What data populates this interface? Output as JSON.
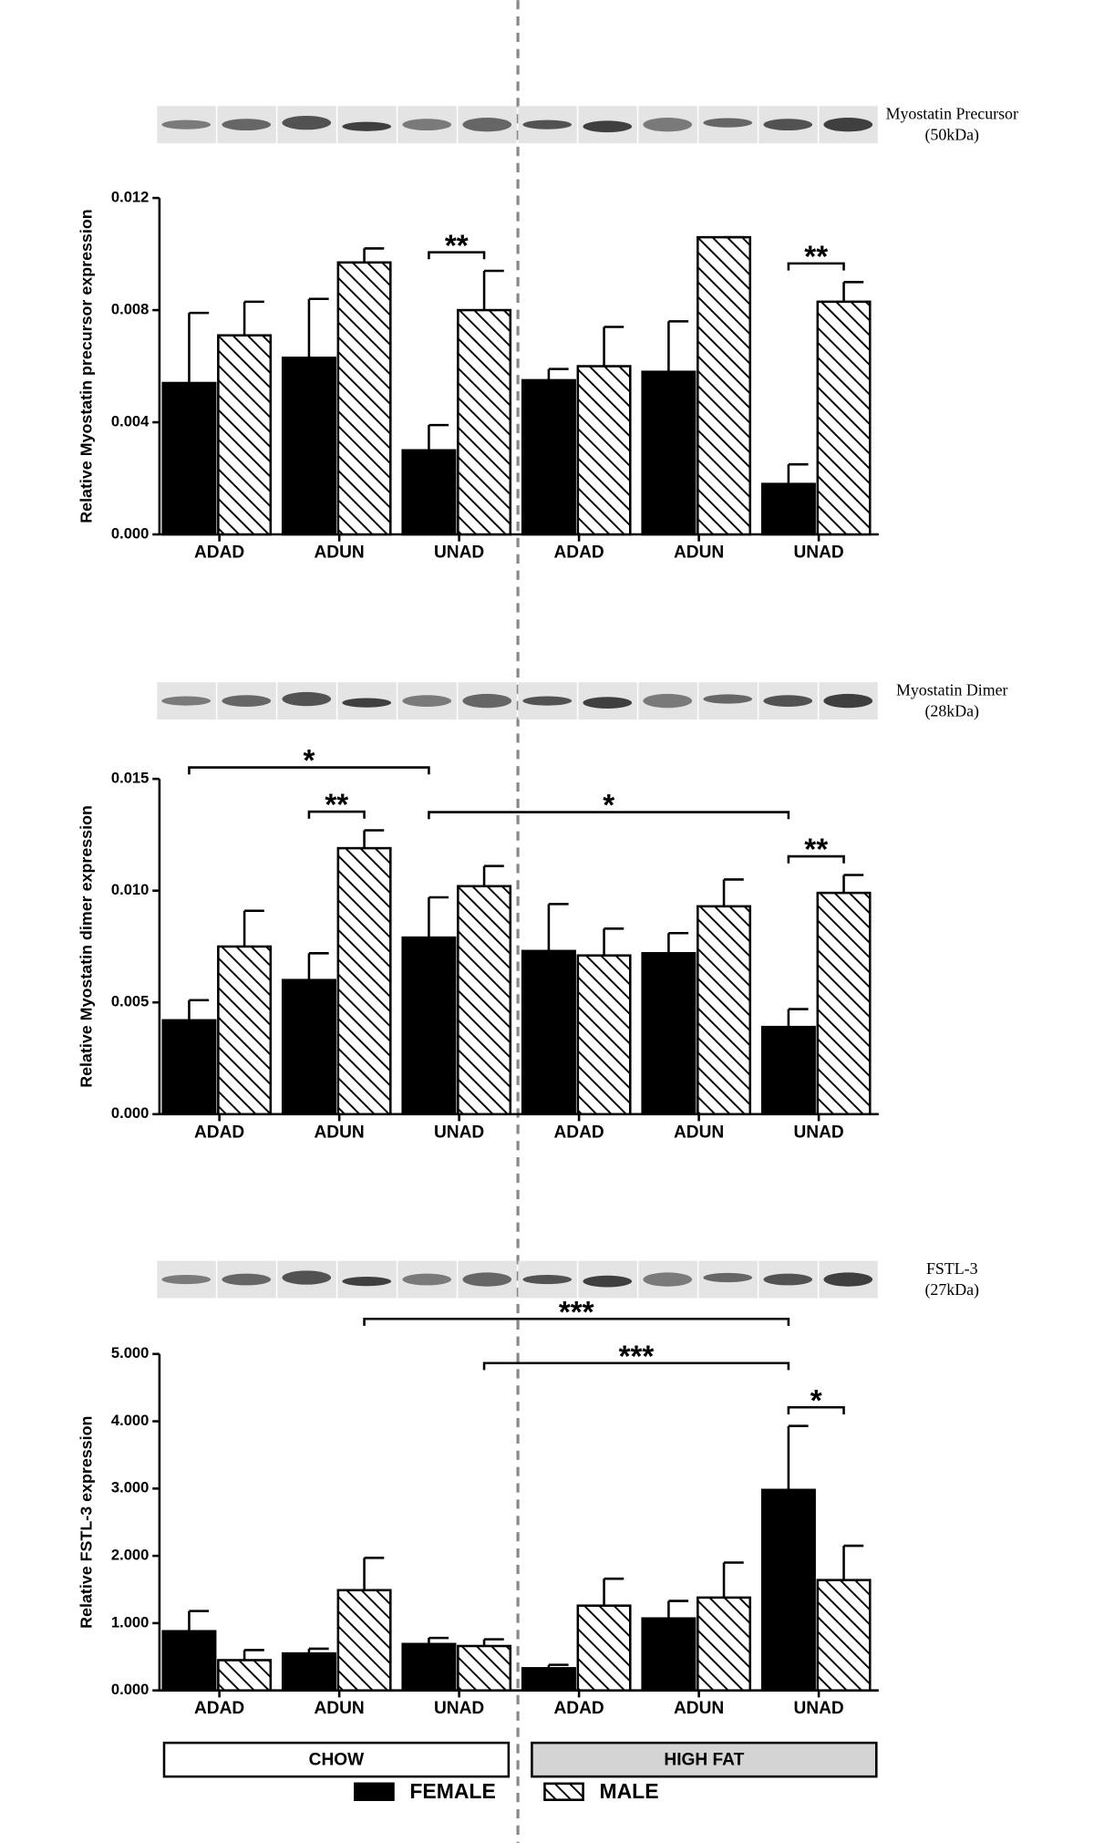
{
  "chart_data": [
    {
      "type": "bar",
      "blot": [
        "Myostatin Precursor",
        "(50kDa)"
      ],
      "y_label": "Relative Myostatin precursor expression",
      "categories": [
        "ADAD",
        "ADUN",
        "UNAD",
        "ADAD",
        "ADUN",
        "UNAD"
      ],
      "series": [
        {
          "color": "#000000",
          "hatch": false,
          "values": [
            0.0054,
            0.0063,
            0.003,
            0.0055,
            0.0058,
            0.0018
          ],
          "errors": [
            0.0025,
            0.0021,
            0.0009,
            0.0004,
            0.0018,
            0.0007
          ]
        },
        {
          "color": "#000000",
          "hatch": true,
          "values": [
            0.0071,
            0.0097,
            0.008,
            0.006,
            0.0106,
            0.0083
          ],
          "errors": [
            0.0012,
            0.0005,
            0.0014,
            0.0014,
            0,
            0.0007
          ]
        }
      ],
      "ylim": [
        0,
        0.012
      ],
      "yticks": [
        {
          "value": 0,
          "label": "0.000"
        },
        0.004,
        0.008,
        0.012
      ],
      "annotations": [
        {
          "text": "**",
          "from": [
            2,
            0
          ],
          "to": [
            2,
            1
          ]
        },
        {
          "text": "**",
          "from": [
            5,
            0
          ],
          "to": [
            5,
            1
          ]
        }
      ]
    },
    {
      "type": "bar",
      "blot": [
        "Myostatin Dimer",
        "(28kDa)"
      ],
      "y_label": "Relative Myostatin dimer expression",
      "categories": [
        "ADAD",
        "ADUN",
        "UNAD",
        "ADAD",
        "ADUN",
        "UNAD"
      ],
      "series": [
        {
          "color": "#000000",
          "hatch": false,
          "values": [
            0.0042,
            0.006,
            0.0079,
            0.0073,
            0.0072,
            0.0039
          ],
          "errors": [
            0.0009,
            0.0012,
            0.0018,
            0.0021,
            0.0009,
            0.0008
          ]
        },
        {
          "color": "#000000",
          "hatch": true,
          "values": [
            0.0075,
            0.0119,
            0.0102,
            0.0071,
            0.0093,
            0.0099
          ],
          "errors": [
            0.0016,
            0.0008,
            0.0009,
            0.0012,
            0.0012,
            0.0008
          ]
        }
      ],
      "ylim": [
        0,
        0.015
      ],
      "yticks": [
        {
          "value": 0,
          "label": "0.000"
        },
        0.005,
        {
          "value": 0.01,
          "label": "0.010"
        },
        0.015
      ],
      "annotations": [
        {
          "text": "**",
          "from": [
            1,
            0
          ],
          "to": [
            1,
            1
          ]
        },
        {
          "text": "**",
          "from": [
            5,
            0
          ],
          "to": [
            5,
            1
          ]
        },
        {
          "text": "*",
          "from": [
            2,
            0
          ],
          "to": [
            5,
            0
          ]
        },
        {
          "text": "*",
          "from": [
            0,
            0
          ],
          "to": [
            2,
            0
          ]
        }
      ]
    },
    {
      "type": "bar",
      "blot": [
        "FSTL-3",
        "(27kDa)"
      ],
      "y_label": "Relative FSTL-3 expression",
      "categories": [
        "ADAD",
        "ADUN",
        "UNAD",
        "ADAD",
        "ADUN",
        "UNAD"
      ],
      "series": [
        {
          "color": "#000000",
          "hatch": false,
          "values": [
            0.88,
            0.55,
            0.69,
            0.33,
            1.07,
            2.98
          ],
          "errors": [
            0.3,
            0.07,
            0.09,
            0.05,
            0.26,
            0.95
          ]
        },
        {
          "color": "#000000",
          "hatch": true,
          "values": [
            0.45,
            1.49,
            0.66,
            1.26,
            1.38,
            1.64
          ],
          "errors": [
            0.15,
            0.48,
            0.1,
            0.4,
            0.52,
            0.51
          ]
        }
      ],
      "ylim": [
        0,
        5
      ],
      "yticks": [
        {
          "value": 0,
          "label": "0.000"
        },
        {
          "value": 1,
          "label": "1.000"
        },
        {
          "value": 2,
          "label": "2.000"
        },
        {
          "value": 3,
          "label": "3.000"
        },
        {
          "value": 4,
          "label": "4.000"
        },
        {
          "value": 5,
          "label": "5.000"
        }
      ],
      "annotations": [
        {
          "text": "*",
          "from": [
            5,
            0
          ],
          "to": [
            5,
            1
          ]
        },
        {
          "text": "***",
          "from": [
            2,
            1
          ],
          "to": [
            5,
            0
          ]
        },
        {
          "text": "***",
          "from": [
            1,
            1
          ],
          "to": [
            5,
            0
          ]
        }
      ]
    }
  ],
  "groups": [
    {
      "label": "CHOW",
      "fill": "#ffffff"
    },
    {
      "label": "HIGH FAT",
      "fill": "#d4d4d4"
    }
  ],
  "legend": [
    {
      "name": "FEMALE",
      "hatch": false
    },
    {
      "name": "MALE",
      "hatch": true
    }
  ]
}
